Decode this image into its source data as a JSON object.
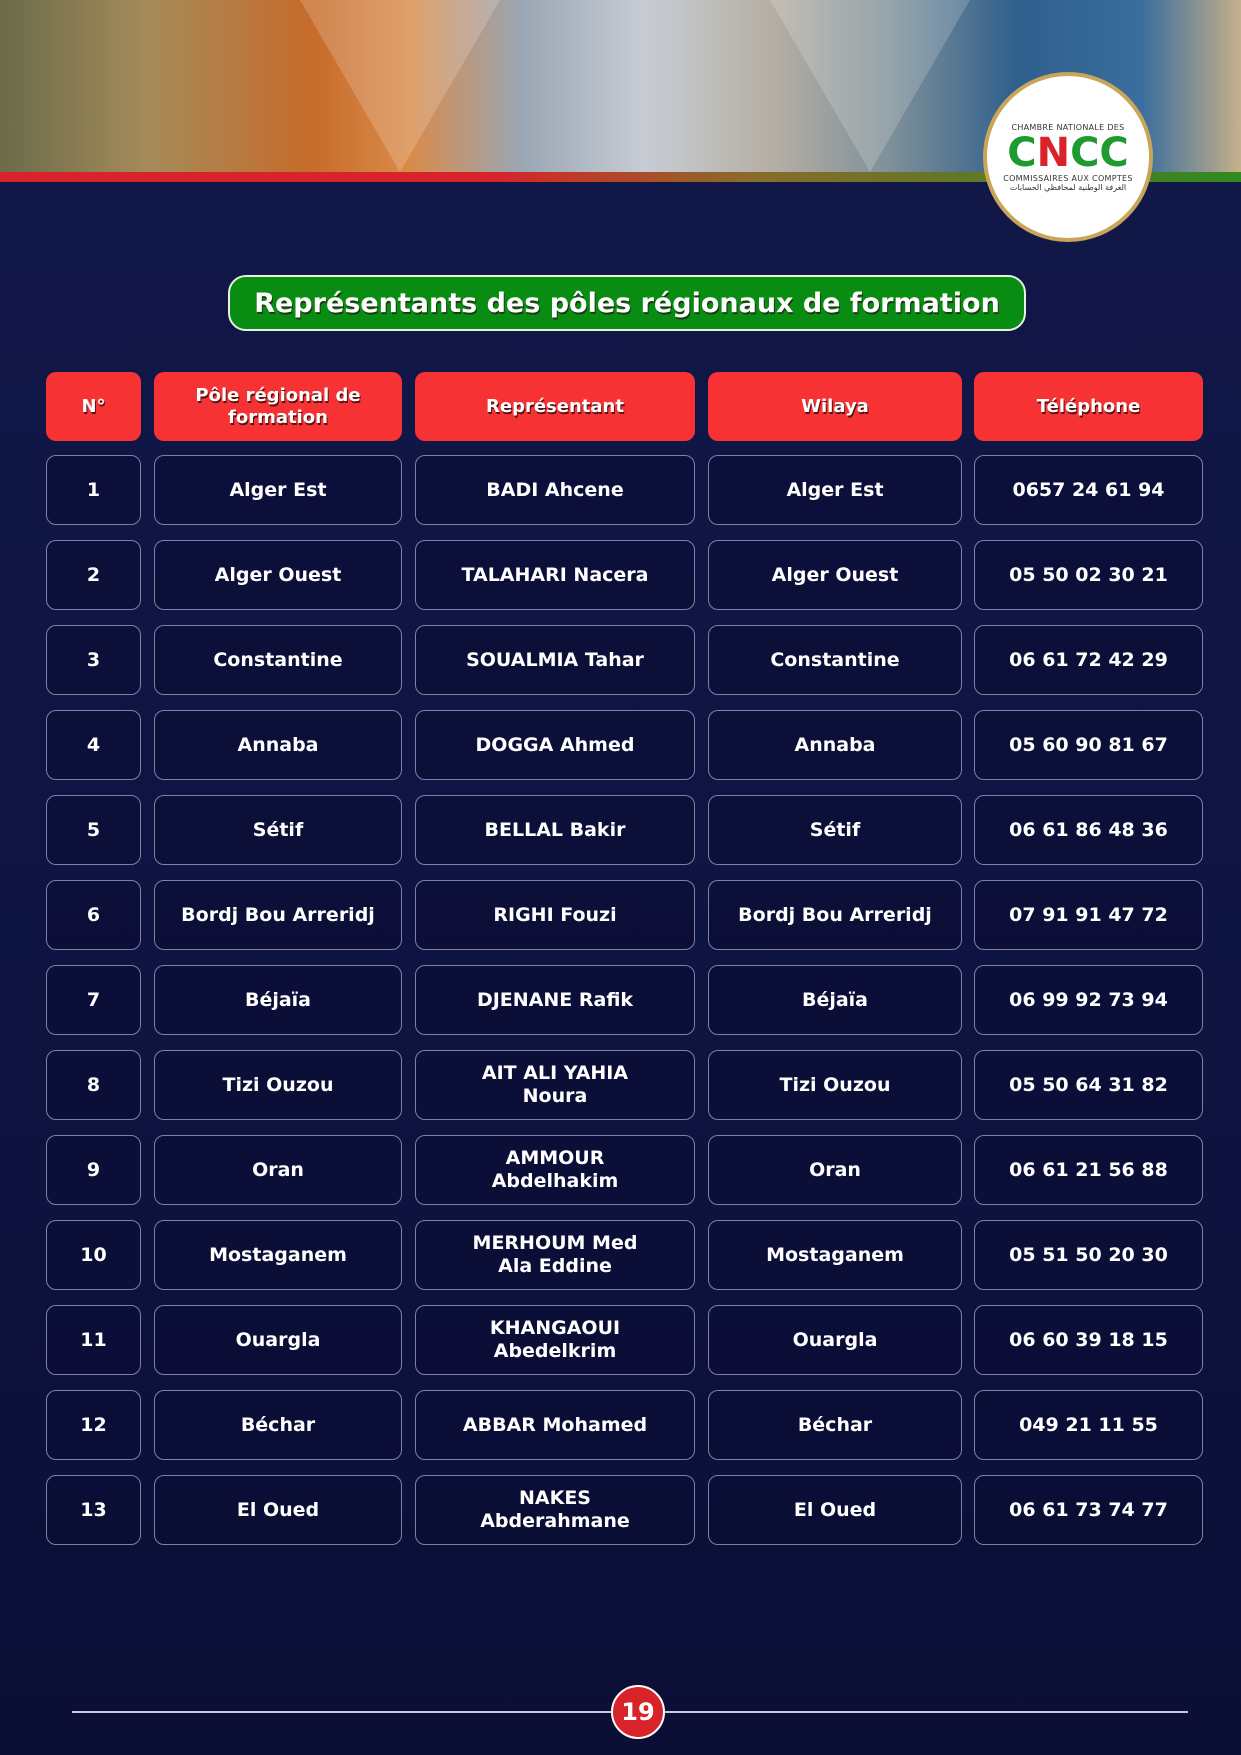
{
  "logo": {
    "top": "CHAMBRE NATIONALE DES",
    "mark": "CNCC",
    "bottom": "COMMISSAIRES AUX COMPTES",
    "arabic": "الغرفة الوطنية لمحافظي الحسابات"
  },
  "title": "Représentants des pôles régionaux de formation",
  "table": {
    "headers": [
      "N°",
      "Pôle régional de formation",
      "Représentant",
      "Wilaya",
      "Téléphone"
    ],
    "rows": [
      [
        "1",
        "Alger Est",
        "BADI Ahcene",
        "Alger Est",
        "0657 24 61 94"
      ],
      [
        "2",
        "Alger Ouest",
        "TALAHARI Nacera",
        "Alger Ouest",
        "05 50 02 30 21"
      ],
      [
        "3",
        "Constantine",
        "SOUALMIA Tahar",
        "Constantine",
        "06 61 72 42 29"
      ],
      [
        "4",
        "Annaba",
        "DOGGA Ahmed",
        "Annaba",
        "05 60 90 81 67"
      ],
      [
        "5",
        "Sétif",
        "BELLAL Bakir",
        "Sétif",
        "06 61 86 48 36"
      ],
      [
        "6",
        "Bordj Bou Arreridj",
        "RIGHI Fouzi",
        "Bordj Bou Arreridj",
        "07 91 91 47 72"
      ],
      [
        "7",
        "Béjaïa",
        "DJENANE Rafik",
        "Béjaïa",
        "06 99 92 73 94"
      ],
      [
        "8",
        "Tizi Ouzou",
        "AIT ALI YAHIA Noura",
        "Tizi Ouzou",
        "05 50 64 31 82"
      ],
      [
        "9",
        "Oran",
        "AMMOUR Abdelhakim",
        "Oran",
        "06 61 21 56 88"
      ],
      [
        "10",
        "Mostaganem",
        "MERHOUM Med Ala Eddine",
        "Mostaganem",
        "05 51 50 20 30"
      ],
      [
        "11",
        "Ouargla",
        "KHANGAOUI Abedelkrim",
        "Ouargla",
        "06 60 39 18 15"
      ],
      [
        "12",
        "Béchar",
        "ABBAR Mohamed",
        "Béchar",
        "049 21 11 55"
      ],
      [
        "13",
        "El Oued",
        "NAKES Abderahmane",
        "El Oued",
        "06 61 73 74 77"
      ]
    ]
  },
  "page_number": "19",
  "colors": {
    "header_red": "#f73234",
    "title_green": "#088c11",
    "background": "#121848"
  }
}
